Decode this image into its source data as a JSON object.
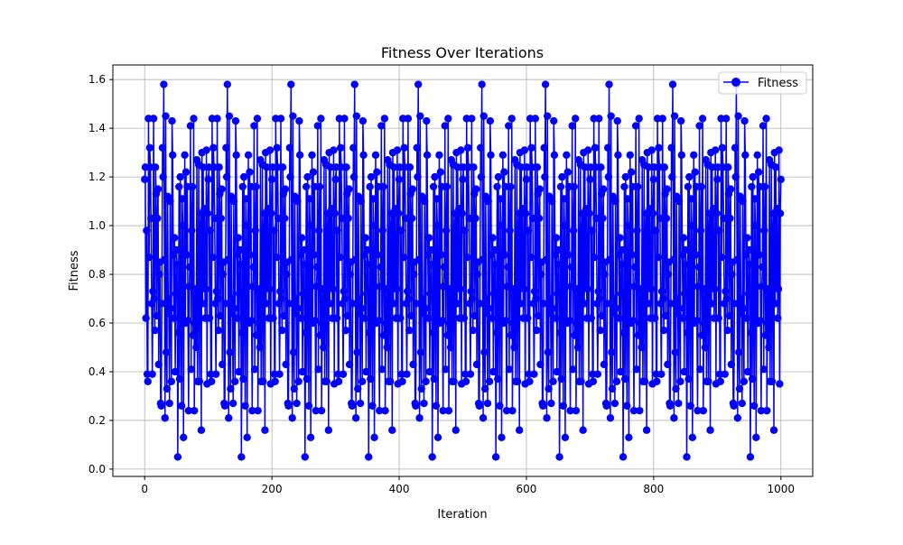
{
  "chart_data": {
    "type": "line",
    "title": "Fitness Over Iterations",
    "xlabel": "Iteration",
    "ylabel": "Fitness",
    "xlim": [
      -50,
      1050
    ],
    "ylim": [
      -0.03,
      1.66
    ],
    "x_ticks": [
      0,
      200,
      400,
      600,
      800,
      1000
    ],
    "x_tick_labels": [
      "0",
      "200",
      "400",
      "600",
      "800",
      "1000"
    ],
    "y_ticks": [
      0.0,
      0.2,
      0.4,
      0.6,
      0.8,
      1.0,
      1.2,
      1.4,
      1.6
    ],
    "y_tick_labels": [
      "0.0",
      "0.2",
      "0.4",
      "0.6",
      "0.8",
      "1.0",
      "1.2",
      "1.4",
      "1.6"
    ],
    "grid": true,
    "legend_position": "top-right",
    "series": [
      {
        "name": "Fitness",
        "color": "#0000ff",
        "marker": "circle",
        "x_start": 0,
        "x_end": 1000,
        "period": 100,
        "values": [
          1.19,
          1.24,
          0.62,
          0.98,
          0.39,
          0.36,
          1.44,
          0.87,
          1.32,
          1.24,
          1.03,
          0.68,
          0.39,
          0.73,
          1.44,
          0.7,
          0.57,
          1.24,
          1.13,
          0.63,
          1.03,
          1.15,
          0.43,
          0.8,
          0.85,
          0.27,
          0.26,
          0.68,
          1.32,
          1.2,
          1.58,
          0.86,
          0.21,
          1.45,
          0.48,
          0.33,
          1.12,
          0.7,
          0.64,
          0.27,
          1.1,
          0.66,
          0.36,
          1.43,
          1.29,
          0.88,
          0.62,
          0.95,
          0.4,
          0.72,
          0.9,
          0.84,
          0.05,
          0.56,
          1.16,
          0.37,
          1.2,
          0.69,
          0.26,
          1.11,
          1.0,
          0.13,
          0.75,
          1.29,
          0.6,
          1.22,
          0.88,
          1.16,
          0.61,
          0.24,
          0.75,
          0.83,
          1.41,
          0.41,
          0.98,
          1.16,
          0.55,
          1.44,
          0.24,
          0.6,
          0.74,
          0.5,
          1.27,
          0.36,
          0.7,
          1.25,
          0.36,
          0.98,
          1.05,
          0.16,
          1.3,
          0.68,
          1.24,
          0.75,
          1.07,
          0.62,
          0.74,
          1.31,
          0.35,
          1.05
        ]
      }
    ]
  }
}
